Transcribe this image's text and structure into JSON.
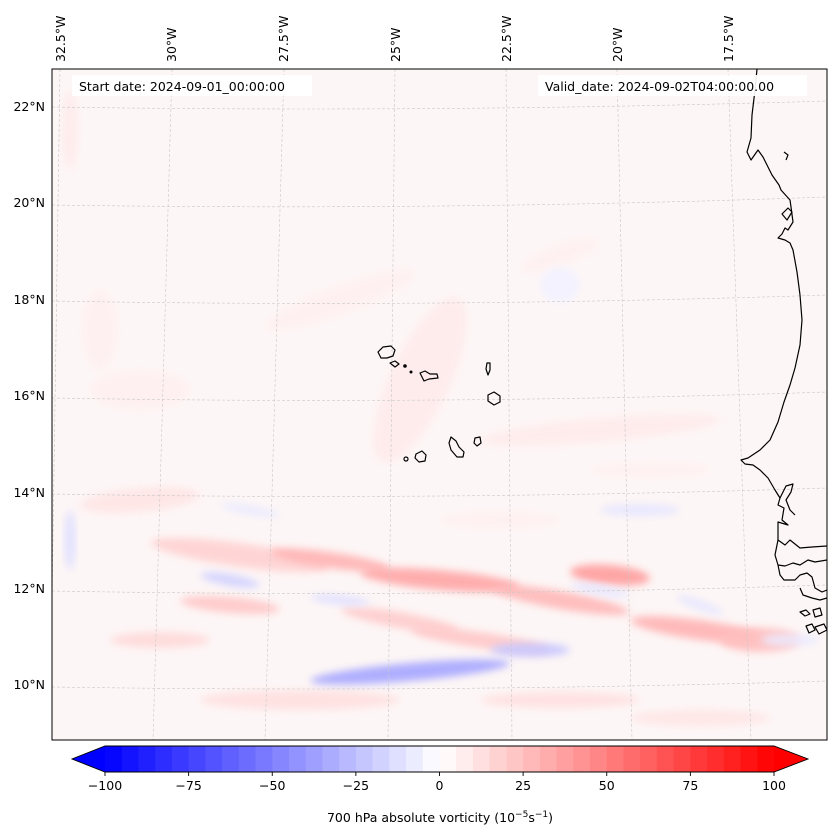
{
  "figure": {
    "type": "map",
    "projection_hint": "Lambert/conic (slightly curved graticule)",
    "start_date_label": "Start date: 2024-09-01_00:00:00",
    "valid_date_label": "Valid_date: 2024-09-02T04:00:00.00",
    "longitude_labels": [
      "32.5°W",
      "30°W",
      "27.5°W",
      "25°W",
      "22.5°W",
      "20°W",
      "17.5°W"
    ],
    "latitude_labels": [
      "22°N",
      "20°N",
      "18°N",
      "16°N",
      "14°N",
      "12°N",
      "10°N"
    ],
    "extent": {
      "lon_min": -32.6,
      "lon_max": -15.8,
      "lat_min": 8.9,
      "lat_max": 22.8
    }
  },
  "colorbar": {
    "label_main": "700 hPa absolute vorticity (10",
    "label_exp1": "−5",
    "label_mid": "s",
    "label_exp2": "−1",
    "label_end": ")",
    "min": -100,
    "max": 100,
    "step": 5,
    "extend": "both",
    "colormap": "bwr",
    "ticks": [
      {
        "value": -100,
        "label": "−100"
      },
      {
        "value": -75,
        "label": "−75"
      },
      {
        "value": -50,
        "label": "−50"
      },
      {
        "value": -25,
        "label": "−25"
      },
      {
        "value": 0,
        "label": "0"
      },
      {
        "value": 25,
        "label": "25"
      },
      {
        "value": 50,
        "label": "50"
      },
      {
        "value": 75,
        "label": "75"
      },
      {
        "value": 100,
        "label": "100"
      }
    ],
    "colors": {
      "low": "#0000ff",
      "mid": "#ffffff",
      "high": "#ff0000"
    }
  },
  "chart_data": {
    "type": "heatmap",
    "title": "",
    "variable": "700 hPa absolute vorticity",
    "units": "10^-5 s^-1",
    "value_range": [
      -100,
      100
    ],
    "features": [
      {
        "name": "Cape Verde Islands",
        "lon_range": [
          -25.4,
          -22.6
        ],
        "lat_range": [
          14.8,
          17.2
        ]
      },
      {
        "name": "West African coast (Mauritania/Senegal/Gambia/Guinea-Bissau)",
        "lon_range": [
          -17.6,
          -15.8
        ],
        "lat_range": [
          10.8,
          22.8
        ]
      }
    ],
    "notable_fields": [
      {
        "description": "Band of positive vorticity ~20-40",
        "lat_approx": 12,
        "lon_range": [
          -31,
          -17
        ]
      },
      {
        "description": "Negative vorticity band ~-20 to -30",
        "lat_approx": 10.5,
        "lon_range": [
          -28,
          -22
        ]
      },
      {
        "description": "Weak positive background ~0-10",
        "lat_range": [
          14,
          22.8
        ]
      }
    ]
  }
}
